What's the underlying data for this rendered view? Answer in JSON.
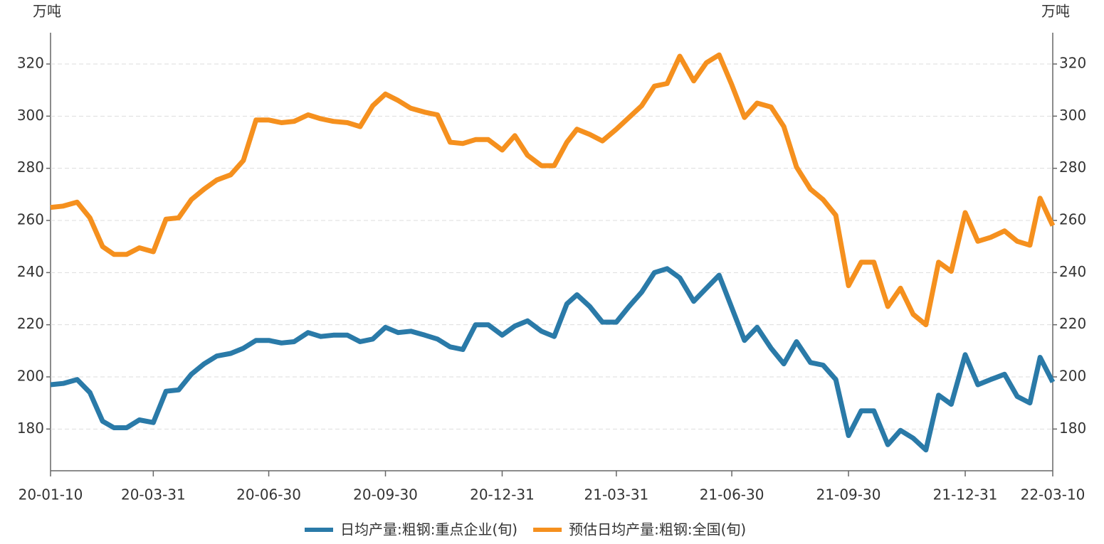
{
  "chart_data": {
    "type": "line",
    "y_label": "万吨",
    "y2_label": "万吨",
    "x": [
      "20-01-10",
      "20-01-20",
      "20-01-31",
      "20-02-10",
      "20-02-20",
      "20-02-29",
      "20-03-10",
      "20-03-20",
      "20-03-31",
      "20-04-10",
      "20-04-20",
      "20-04-30",
      "20-05-10",
      "20-05-20",
      "20-05-31",
      "20-06-10",
      "20-06-20",
      "20-06-30",
      "20-07-10",
      "20-07-20",
      "20-07-31",
      "20-08-10",
      "20-08-20",
      "20-08-31",
      "20-09-10",
      "20-09-20",
      "20-09-30",
      "20-10-10",
      "20-10-20",
      "20-10-31",
      "20-11-10",
      "20-11-20",
      "20-11-30",
      "20-12-10",
      "20-12-20",
      "20-12-31",
      "21-01-10",
      "21-01-20",
      "21-01-31",
      "21-02-10",
      "21-02-20",
      "21-02-28",
      "21-03-10",
      "21-03-20",
      "21-03-31",
      "21-04-10",
      "21-04-20",
      "21-04-30",
      "21-05-10",
      "21-05-20",
      "21-05-31",
      "21-06-10",
      "21-06-20",
      "21-06-30",
      "21-07-10",
      "21-07-20",
      "21-07-31",
      "21-08-10",
      "21-08-20",
      "21-08-31",
      "21-09-10",
      "21-09-20",
      "21-09-30",
      "21-10-10",
      "21-10-20",
      "21-10-31",
      "21-11-10",
      "21-11-20",
      "21-11-30",
      "21-12-10",
      "21-12-20",
      "21-12-31",
      "22-01-10",
      "22-01-20",
      "22-01-31",
      "22-02-10",
      "22-02-20",
      "22-02-28",
      "22-03-10"
    ],
    "series": [
      {
        "name": "日均产量:粗钢:重点企业(旬)",
        "color": "#2a7aa8",
        "values": [
          197,
          197.5,
          199,
          194,
          183,
          180.5,
          180.5,
          183.5,
          182.5,
          194.5,
          195,
          201,
          205,
          208,
          209,
          211,
          214,
          214,
          213,
          213.5,
          217,
          215.5,
          216,
          216,
          213.5,
          214.5,
          219,
          217,
          217.5,
          216,
          214.5,
          211.5,
          210.5,
          220,
          220,
          216,
          219.5,
          221.5,
          217.5,
          215.5,
          228,
          231.5,
          227,
          221,
          221,
          227,
          232.5,
          240,
          241.5,
          238,
          229,
          234,
          239,
          226.5,
          214,
          219,
          211,
          205,
          213.5,
          205.5,
          204.5,
          199,
          177.5,
          187,
          187,
          174,
          179.5,
          176.5,
          172,
          193,
          189.5,
          208.5,
          197,
          199,
          201,
          192.5,
          190,
          207.5,
          198
        ]
      },
      {
        "name": "预估日均产量:粗钢:全国(旬)",
        "color": "#f5901e",
        "axis": "y2",
        "values": [
          265,
          265.5,
          267,
          261,
          250,
          247,
          247,
          249.5,
          248,
          260.5,
          261,
          268,
          272,
          275.5,
          277.5,
          283,
          298.5,
          298.5,
          297.5,
          298,
          300.5,
          299,
          298,
          297.5,
          296,
          304,
          308.5,
          306,
          303,
          301.5,
          300.5,
          290,
          289.5,
          291,
          291,
          287,
          292.5,
          285,
          281,
          281,
          290,
          295,
          293,
          290.5,
          295,
          299.5,
          304,
          311.5,
          312.5,
          323,
          313.5,
          320.5,
          323.5,
          312,
          299.5,
          305,
          303.5,
          296,
          280.5,
          272,
          268,
          262,
          235,
          244,
          244,
          227,
          234,
          224,
          220,
          244,
          240.5,
          263,
          252,
          253.5,
          256,
          252,
          250.5,
          268.5,
          258
        ]
      }
    ],
    "xlim": [
      "20-01-10",
      "22-03-10"
    ],
    "xticks": [
      "20-01-10",
      "20-03-31",
      "20-06-30",
      "20-09-30",
      "20-12-31",
      "21-03-31",
      "21-06-30",
      "21-09-30",
      "21-12-31",
      "22-03-10"
    ],
    "ylim": [
      164,
      332
    ],
    "yticks": [
      180,
      200,
      220,
      240,
      260,
      280,
      300,
      320
    ],
    "y2lim": [
      164,
      332
    ],
    "y2ticks": [
      180,
      200,
      220,
      240,
      260,
      280,
      300,
      320
    ],
    "grid": true
  }
}
